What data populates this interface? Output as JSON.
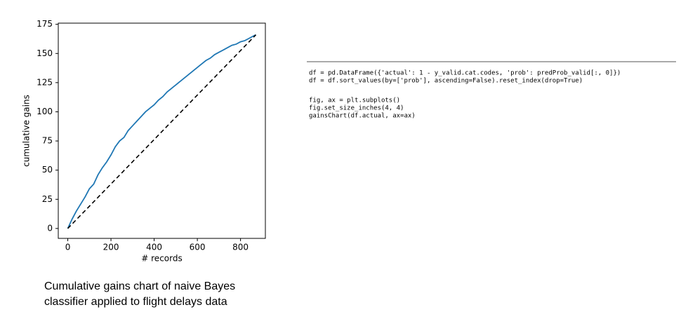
{
  "chart_data": {
    "type": "line",
    "xlabel": "# records",
    "ylabel": "cumulative gains",
    "xlim": [
      -44,
      915
    ],
    "ylim": [
      -8.5,
      176
    ],
    "xticks": [
      0,
      200,
      400,
      600,
      800
    ],
    "yticks": [
      0,
      25,
      50,
      75,
      100,
      125,
      150,
      175
    ],
    "series": [
      {
        "color": "#1f77b4",
        "dash": false,
        "x": [
          0,
          20,
          40,
          60,
          80,
          100,
          120,
          140,
          160,
          180,
          200,
          220,
          240,
          260,
          280,
          300,
          320,
          340,
          360,
          380,
          400,
          420,
          440,
          460,
          480,
          500,
          520,
          540,
          560,
          580,
          600,
          620,
          640,
          660,
          680,
          700,
          720,
          740,
          760,
          780,
          800,
          820,
          840,
          860,
          871
        ],
        "values": [
          0,
          8,
          15,
          21,
          27,
          34,
          38,
          46,
          52,
          57,
          63,
          70,
          75,
          78,
          84,
          88,
          92,
          96,
          100,
          103,
          106,
          110,
          113,
          117,
          120,
          123,
          126,
          129,
          132,
          135,
          138,
          141,
          144,
          146,
          149,
          151,
          153,
          155,
          157,
          158,
          160,
          161,
          163,
          165,
          166
        ]
      },
      {
        "color": "#000000",
        "dash": true,
        "x": [
          0,
          871
        ],
        "values": [
          0,
          166
        ]
      }
    ]
  },
  "code": [
    [
      "df = pd.DataFrame({'actual': 1 - y_valid.cat.codes, 'prob': predProb_valid[:, 0]})",
      "df = df.sort_values(by=['prob'], ascending=False).reset_index(drop=True)"
    ],
    [
      "fig, ax = plt.subplots()",
      "fig.set_size_inches(4, 4)",
      "gainsChart(df.actual, ax=ax)"
    ]
  ],
  "caption": [
    "Cumulative gains chart of naive Bayes",
    "classifier applied to flight delays data"
  ]
}
